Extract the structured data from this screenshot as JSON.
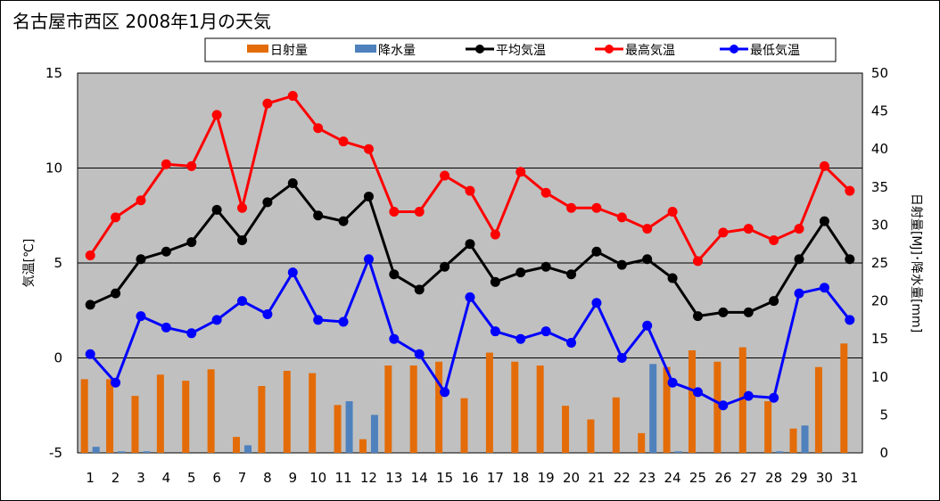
{
  "chart_data": {
    "type": "bar+line",
    "title": "名古屋市西区  2008年1月の天気",
    "x": [
      1,
      2,
      3,
      4,
      5,
      6,
      7,
      8,
      9,
      10,
      11,
      12,
      13,
      14,
      15,
      16,
      17,
      18,
      19,
      20,
      21,
      22,
      23,
      24,
      25,
      26,
      27,
      28,
      29,
      30,
      31
    ],
    "left_axis": {
      "label": "気温[℃]",
      "ylim": [
        -5,
        15
      ],
      "ticks": [
        15,
        10,
        5,
        0,
        -5
      ]
    },
    "right_axis": {
      "label": "日射量[MJ]･降水量[mm]",
      "ylim": [
        0,
        50
      ],
      "ticks": [
        50,
        45,
        40,
        35,
        30,
        25,
        20,
        15,
        10,
        5,
        0
      ]
    },
    "gridlines_at": [
      10,
      5,
      0
    ],
    "legend_placement": "top",
    "series": [
      {
        "name": "日射量",
        "kind": "bar",
        "axis": "right",
        "color": "#E36C09",
        "values": [
          9.7,
          9.7,
          7.5,
          10.3,
          9.5,
          11.0,
          2.1,
          8.8,
          10.8,
          10.5,
          6.3,
          1.8,
          11.5,
          11.5,
          12.0,
          7.2,
          13.2,
          12.0,
          11.5,
          6.2,
          4.4,
          7.3,
          2.6,
          11.3,
          13.5,
          12.0,
          13.9,
          6.8,
          3.2,
          11.3,
          14.4
        ]
      },
      {
        "name": "降水量",
        "kind": "bar",
        "axis": "right",
        "color": "#4F81BD",
        "values": [
          0.8,
          0.2,
          0.2,
          0,
          0,
          0,
          1.0,
          0,
          0,
          0,
          6.8,
          5.0,
          0,
          0,
          0,
          0,
          0,
          0,
          0,
          0,
          0,
          0,
          11.7,
          0.2,
          0,
          0,
          0,
          0.2,
          3.6,
          0,
          0
        ]
      },
      {
        "name": "平均気温",
        "kind": "line",
        "axis": "left",
        "color": "#000000",
        "values": [
          2.8,
          3.4,
          5.2,
          5.6,
          6.1,
          7.8,
          6.2,
          8.2,
          9.2,
          7.5,
          7.2,
          8.5,
          4.4,
          3.6,
          4.8,
          6.0,
          4.0,
          4.5,
          4.8,
          4.4,
          5.6,
          4.9,
          5.2,
          4.2,
          2.2,
          2.4,
          2.4,
          3.0,
          5.2,
          7.2,
          5.2
        ]
      },
      {
        "name": "最高気温",
        "kind": "line",
        "axis": "left",
        "color": "#FF0000",
        "values": [
          5.4,
          7.4,
          8.3,
          10.2,
          10.1,
          12.8,
          7.9,
          13.4,
          13.8,
          12.1,
          11.4,
          11.0,
          7.7,
          7.7,
          9.6,
          8.8,
          6.5,
          9.8,
          8.7,
          7.9,
          7.9,
          7.4,
          6.8,
          7.7,
          5.1,
          6.6,
          6.8,
          6.2,
          6.8,
          10.1,
          8.8
        ]
      },
      {
        "name": "最低気温",
        "kind": "line",
        "axis": "left",
        "color": "#0000FF",
        "values": [
          0.2,
          -1.3,
          2.2,
          1.6,
          1.3,
          2.0,
          3.0,
          2.3,
          4.5,
          2.0,
          1.9,
          5.2,
          1.0,
          0.2,
          -1.8,
          3.2,
          1.4,
          1.0,
          1.4,
          0.8,
          2.9,
          0.0,
          1.7,
          -1.3,
          -1.8,
          -2.5,
          -2.0,
          -2.1,
          3.4,
          3.7,
          2.0
        ]
      }
    ]
  }
}
